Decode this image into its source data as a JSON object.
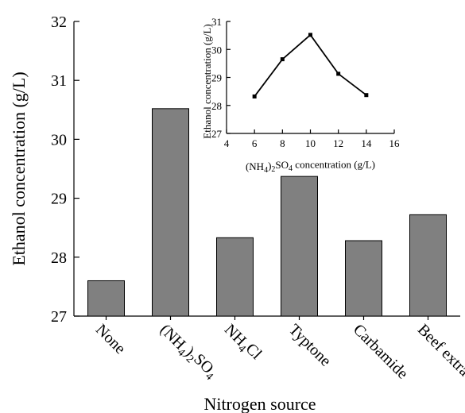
{
  "chart_data": [
    {
      "type": "bar",
      "categories": [
        "None",
        "(NH4)2SO4",
        "NH4Cl",
        "Typtone",
        "Carbamide",
        "Beef extract"
      ],
      "values": [
        27.6,
        30.52,
        28.33,
        29.37,
        28.28,
        28.72
      ],
      "xlabel": "Nitrogen source",
      "ylabel": "Ethanol concentration (g/L)",
      "ylim": [
        27,
        32
      ],
      "yticks": [
        27,
        28,
        29,
        30,
        31,
        32
      ],
      "bar_color": "#808080",
      "grid": false
    },
    {
      "type": "line",
      "placement": "inset top-right",
      "x": [
        6,
        8,
        10,
        12,
        14
      ],
      "values": [
        28.32,
        29.65,
        30.52,
        29.13,
        28.37
      ],
      "xlabel": "(NH4)2SO4 concentration (g/L)",
      "ylabel": "Ethanol concentration (g/L)",
      "xlim": [
        4,
        16
      ],
      "ylim": [
        27,
        31
      ],
      "xticks": [
        4,
        6,
        8,
        10,
        12,
        14,
        16
      ],
      "yticks": [
        27,
        28,
        29,
        30,
        31
      ],
      "grid": false
    }
  ]
}
